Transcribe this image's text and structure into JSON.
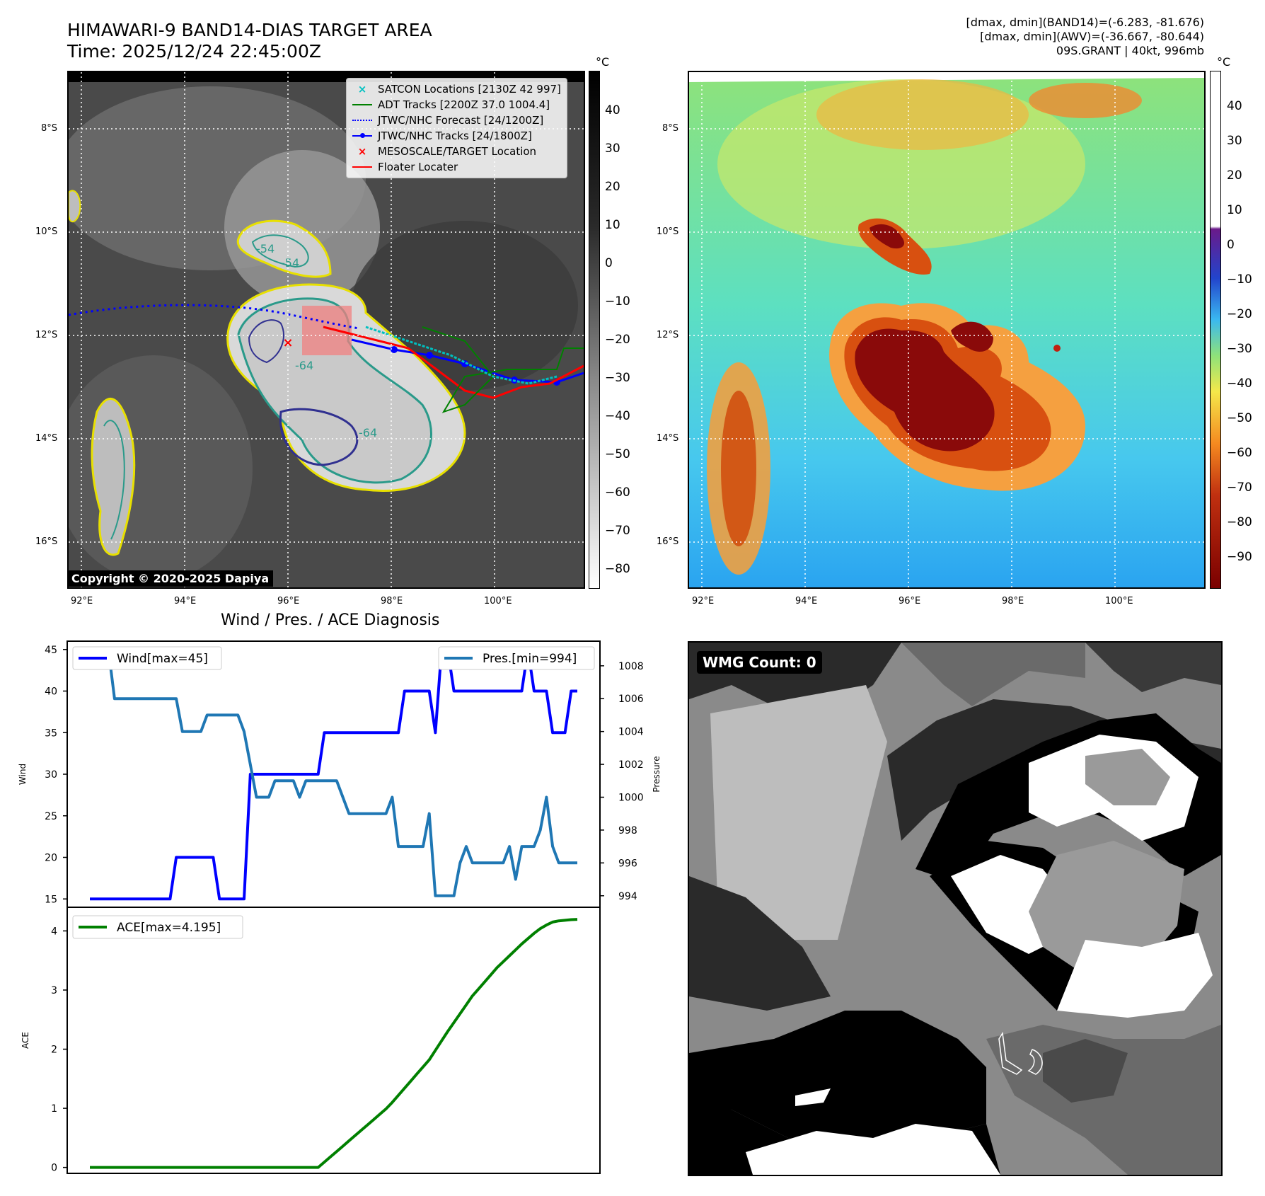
{
  "header": {
    "title_line1": "HIMAWARI-9 BAND14-DIAS TARGET AREA",
    "title_line2": "Time: 2025/12/24 22:45:00Z",
    "right_line1": "[dmax, dmin](BAND14)=(-6.283, -81.676)",
    "right_line2": "[dmax, dmin](AWV)=(-36.667, -80.644)",
    "right_line3": "09S.GRANT | 40kt, 996mb"
  },
  "map": {
    "lat_ticks": [
      "8°S",
      "10°S",
      "12°S",
      "14°S",
      "16°S"
    ],
    "lon_ticks": [
      "92°E",
      "94°E",
      "96°E",
      "98°E",
      "100°E"
    ],
    "copyright": "Copyright © 2020-2025 Dapiya",
    "contour_labels": [
      "-54",
      "-54",
      "-64",
      "-64"
    ],
    "legend": [
      {
        "label": "SATCON Locations [2130Z 42 997]",
        "color": "#00c0c0",
        "icon": "x-marker-icon"
      },
      {
        "label": "ADT Tracks [2200Z 37.0 1004.4]",
        "color": "#008000",
        "icon": "line-icon"
      },
      {
        "label": "JTWC/NHC Forecast [24/1200Z]",
        "color": "#0000ff",
        "icon": "dotted-line-icon"
      },
      {
        "label": "JTWC/NHC Tracks [24/1800Z]",
        "color": "#0000ff",
        "icon": "line-dot-icon"
      },
      {
        "label": "MESOSCALE/TARGET Location",
        "color": "#ff0000",
        "icon": "x-marker-icon"
      },
      {
        "label": "Floater Locater",
        "color": "#ff0000",
        "icon": "line-icon"
      }
    ]
  },
  "colorbar_gray": {
    "unit": "°C",
    "ticks": [
      "40",
      "30",
      "20",
      "10",
      "0",
      "−10",
      "−20",
      "−30",
      "−40",
      "−50",
      "−60",
      "−70",
      "−80"
    ]
  },
  "colorbar_color": {
    "unit": "°C",
    "ticks": [
      "40",
      "30",
      "20",
      "10",
      "0",
      "−10",
      "−20",
      "−30",
      "−40",
      "−50",
      "−60",
      "−70",
      "−80",
      "−90"
    ]
  },
  "wmg": {
    "label": "WMG Count: 0"
  },
  "chart_data": [
    {
      "type": "line",
      "title": "Wind / Pres. / ACE Diagnosis",
      "ylabel": "Wind",
      "ylabel_right": "Pressure",
      "ylim": [
        14,
        46
      ],
      "ylim_right": [
        993.3,
        1009.5
      ],
      "y_ticks": [
        15,
        20,
        25,
        30,
        35,
        40,
        45
      ],
      "y_ticks_right": [
        994,
        996,
        998,
        1000,
        1002,
        1004,
        1006,
        1008
      ],
      "x": [
        0,
        1,
        2,
        3,
        4,
        5,
        6,
        7,
        8,
        9,
        10,
        11,
        12,
        13,
        14,
        15,
        16,
        17,
        18,
        19,
        20,
        21,
        22,
        23,
        24,
        25,
        26,
        27,
        28,
        29,
        30,
        31,
        32,
        33,
        34,
        35,
        36,
        37,
        38,
        39,
        40,
        41,
        42,
        43,
        44,
        45,
        46,
        47,
        48,
        49,
        50,
        51,
        52,
        53,
        54,
        55,
        56,
        57,
        58,
        59,
        60,
        61,
        62,
        63,
        64,
        65,
        66,
        67,
        68,
        69,
        70,
        71,
        72,
        73,
        74,
        75,
        76,
        77,
        78,
        79
      ],
      "series": [
        {
          "name": "Wind[max=45]",
          "color": "#0000ff",
          "values": [
            15,
            15,
            15,
            15,
            15,
            15,
            15,
            15,
            15,
            15,
            15,
            15,
            15,
            15,
            20,
            20,
            20,
            20,
            20,
            20,
            20,
            15,
            15,
            15,
            15,
            15,
            30,
            30,
            30,
            30,
            30,
            30,
            30,
            30,
            30,
            30,
            30,
            30,
            35,
            35,
            35,
            35,
            35,
            35,
            35,
            35,
            35,
            35,
            35,
            35,
            35,
            40,
            40,
            40,
            40,
            40,
            35,
            45,
            45,
            40,
            40,
            40,
            40,
            40,
            40,
            40,
            40,
            40,
            40,
            40,
            40,
            45,
            40,
            40,
            40,
            35,
            35,
            35,
            40,
            40
          ]
        },
        {
          "name": "Pres.[min=994]",
          "color": "#1f77b4",
          "axis": "right",
          "values": [
            1009,
            1009,
            1009,
            1009,
            1006,
            1006,
            1006,
            1006,
            1006,
            1006,
            1006,
            1006,
            1006,
            1006,
            1006,
            1004,
            1004,
            1004,
            1004,
            1005,
            1005,
            1005,
            1005,
            1005,
            1005,
            1004,
            1002,
            1000,
            1000,
            1000,
            1001,
            1001,
            1001,
            1001,
            1000,
            1001,
            1001,
            1001,
            1001,
            1001,
            1001,
            1000,
            999,
            999,
            999,
            999,
            999,
            999,
            999,
            1000,
            997,
            997,
            997,
            997,
            997,
            999,
            994,
            994,
            994,
            994,
            996,
            997,
            996,
            996,
            996,
            996,
            996,
            996,
            997,
            995,
            997,
            997,
            997,
            998,
            1000,
            997,
            996,
            996,
            996,
            996
          ]
        }
      ]
    },
    {
      "type": "line",
      "ylabel": "ACE",
      "ylim": [
        -0.1,
        4.4
      ],
      "y_ticks": [
        0,
        1,
        2,
        3,
        4
      ],
      "x": [
        0,
        1,
        2,
        3,
        4,
        5,
        6,
        7,
        8,
        9,
        10,
        11,
        12,
        13,
        14,
        15,
        16,
        17,
        18,
        19,
        20,
        21,
        22,
        23,
        24,
        25,
        26,
        27,
        28,
        29,
        30,
        31,
        32,
        33,
        34,
        35,
        36,
        37,
        38,
        39,
        40,
        41,
        42,
        43,
        44,
        45,
        46,
        47,
        48,
        49,
        50,
        51,
        52,
        53,
        54,
        55,
        56,
        57,
        58,
        59,
        60,
        61,
        62,
        63,
        64,
        65,
        66,
        67,
        68,
        69,
        70,
        71,
        72,
        73,
        74,
        75,
        76,
        77,
        78,
        79
      ],
      "series": [
        {
          "name": "ACE[max=4.195]",
          "color": "#008000",
          "values": [
            0,
            0,
            0,
            0,
            0,
            0,
            0,
            0,
            0,
            0,
            0,
            0,
            0,
            0,
            0,
            0,
            0,
            0,
            0,
            0,
            0,
            0,
            0,
            0,
            0,
            0,
            0,
            0,
            0,
            0,
            0,
            0,
            0,
            0,
            0,
            0,
            0,
            0,
            0.09,
            0.18,
            0.27,
            0.36,
            0.45,
            0.54,
            0.63,
            0.72,
            0.81,
            0.9,
            0.99,
            1.1,
            1.22,
            1.34,
            1.46,
            1.58,
            1.7,
            1.82,
            1.98,
            2.14,
            2.3,
            2.45,
            2.6,
            2.75,
            2.9,
            3.02,
            3.14,
            3.26,
            3.38,
            3.48,
            3.58,
            3.68,
            3.78,
            3.87,
            3.96,
            4.04,
            4.1,
            4.15,
            4.17,
            4.18,
            4.19,
            4.195
          ]
        }
      ]
    }
  ]
}
